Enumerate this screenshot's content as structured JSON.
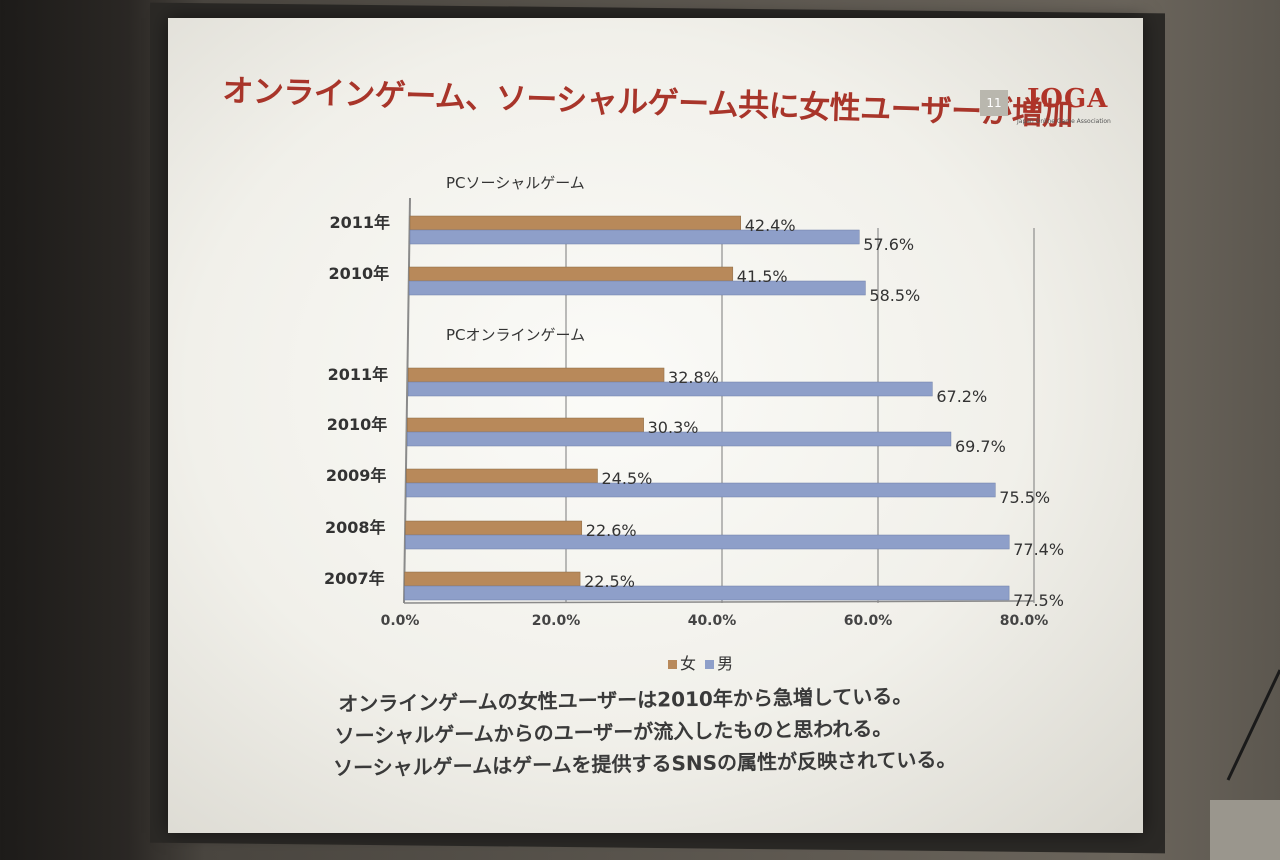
{
  "slide": {
    "title": "オンラインゲーム、ソーシャルゲーム共に女性ユーザーが増加",
    "page_number": "11",
    "logo": {
      "text": "JOGA",
      "subtitle": "Japan Online Game Association"
    },
    "notes": [
      "オンラインゲームの女性ユーザーは2010年から急増している。",
      "ソーシャルゲームからのユーザーが流入したものと思われる。",
      "ソーシャルゲームはゲームを提供するSNSの属性が反映されている。"
    ]
  },
  "chart_data": {
    "type": "bar",
    "orientation": "horizontal",
    "groups": [
      {
        "label": "PCソーシャルゲーム",
        "categories": [
          "2011年",
          "2010年"
        ]
      },
      {
        "label": "PCオンラインゲーム",
        "categories": [
          "2011年",
          "2010年",
          "2009年",
          "2008年",
          "2007年"
        ]
      }
    ],
    "categories": [
      "2011年",
      "2010年",
      "2011年",
      "2010年",
      "2009年",
      "2008年",
      "2007年"
    ],
    "series": [
      {
        "name": "女",
        "color": "#b8895a",
        "values": [
          42.4,
          41.5,
          32.8,
          30.3,
          24.5,
          22.6,
          22.5
        ],
        "labels": [
          "42.4%",
          "41.5%",
          "32.8%",
          "30.3%",
          "24.5%",
          "22.6%",
          "22.5%"
        ]
      },
      {
        "name": "男",
        "color": "#8e9fc9",
        "values": [
          57.6,
          58.5,
          67.2,
          69.7,
          75.5,
          77.4,
          77.5
        ],
        "labels": [
          "57.6%",
          "58.5%",
          "67.2%",
          "69.7%",
          "75.5%",
          "77.4%",
          "77.5%"
        ]
      }
    ],
    "x_ticks": [
      "0.0%",
      "20.0%",
      "40.0%",
      "60.0%",
      "80.0%"
    ],
    "xlim": [
      0,
      80
    ],
    "grid": true,
    "legend_position": "bottom"
  }
}
